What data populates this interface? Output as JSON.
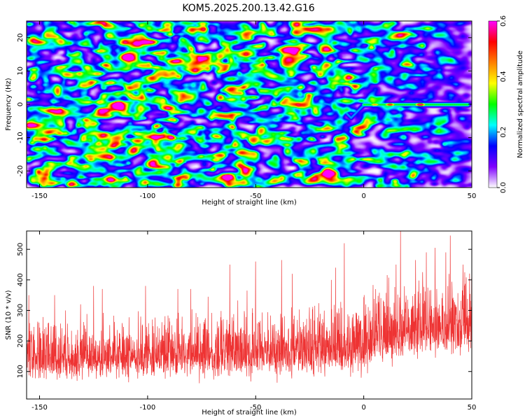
{
  "title": "KOM5.2025.200.13.42.G16",
  "chart_data": [
    {
      "type": "heatmap",
      "title": "KOM5.2025.200.13.42.G16",
      "xlabel": "Height of straight line (km)",
      "ylabel": "Frequency (Hz)",
      "xlim": [
        -156,
        50
      ],
      "ylim": [
        -25,
        25
      ],
      "x_ticks": [
        -150,
        -100,
        -50,
        0,
        50
      ],
      "y_ticks": [
        -20,
        -10,
        0,
        10,
        20
      ],
      "grid": false,
      "colorbar": {
        "label": "Normalized spectral amplitude",
        "range": [
          0,
          0.6
        ],
        "ticks": [
          0.0,
          0.2,
          0.4,
          0.6
        ],
        "colormap": [
          "#ffffff",
          "#7f00ff",
          "#0000ff",
          "#00ffff",
          "#00ff00",
          "#ffff00",
          "#ff8000",
          "#ff0000",
          "#ff00ff"
        ]
      },
      "features": [
        {
          "kind": "noise-field",
          "x_range": [
            -156,
            50
          ],
          "y_range": [
            -25,
            25
          ],
          "amplitude": 0.1
        },
        {
          "kind": "ridge",
          "points": [
            [
              -33,
              -2
            ],
            [
              -28,
              -1
            ],
            [
              -24,
              0
            ],
            [
              -20,
              0.5
            ],
            [
              -16,
              0
            ],
            [
              -12,
              -0.5
            ],
            [
              -9,
              -2
            ],
            [
              -6,
              -4
            ],
            [
              -3,
              -2
            ],
            [
              0,
              0
            ],
            [
              5,
              0
            ],
            [
              10,
              0
            ],
            [
              15,
              0
            ],
            [
              20,
              0
            ],
            [
              25,
              0
            ],
            [
              30,
              0
            ],
            [
              35,
              0
            ],
            [
              40,
              0
            ],
            [
              45,
              0
            ],
            [
              48,
              0
            ]
          ]
        },
        {
          "kind": "peak",
          "x": 26,
          "y": 0,
          "value": 0.6
        },
        {
          "kind": "peak",
          "x": 12,
          "y": 0,
          "value": 0.55
        },
        {
          "kind": "peak",
          "x": 5,
          "y": 0,
          "value": 0.45
        },
        {
          "kind": "spot",
          "x": -75,
          "y": 12,
          "value": 0.3
        },
        {
          "kind": "spot",
          "x": -83,
          "y": -17,
          "value": 0.28
        },
        {
          "kind": "spot",
          "x": -86,
          "y": -10,
          "value": 0.22
        }
      ]
    },
    {
      "type": "line",
      "xlabel": "Height of straight line (km)",
      "ylabel": "SNR (10 * v/v)",
      "xlim": [
        -156,
        50
      ],
      "ylim": [
        10,
        560
      ],
      "x_ticks": [
        -150,
        -100,
        -50,
        0,
        50
      ],
      "y_ticks": [
        100,
        200,
        300,
        400,
        500
      ],
      "grid": false,
      "series": [
        {
          "color": "#ee3333",
          "x": [
            -156,
            -145,
            -135,
            -125,
            -115,
            -105,
            -95,
            -85,
            -75,
            -65,
            -55,
            -45,
            -35,
            -25,
            -15,
            -5,
            0,
            5,
            10,
            20,
            30,
            40,
            50
          ],
          "baseline": [
            125,
            120,
            120,
            130,
            125,
            130,
            130,
            135,
            135,
            135,
            135,
            145,
            140,
            140,
            145,
            145,
            150,
            170,
            180,
            195,
            205,
            210,
            210
          ],
          "envelope": [
            290,
            280,
            280,
            300,
            300,
            305,
            305,
            320,
            320,
            320,
            325,
            330,
            330,
            340,
            345,
            355,
            380,
            400,
            410,
            425,
            430,
            440,
            440
          ],
          "peaks": [
            [
              -155,
              350
            ],
            [
              -143,
              350
            ],
            [
              -138,
              300
            ],
            [
              -131,
              320
            ],
            [
              -125,
              380
            ],
            [
              -121,
              370
            ],
            [
              -101,
              380
            ],
            [
              -86,
              370
            ],
            [
              -80,
              370
            ],
            [
              -72,
              345
            ],
            [
              -62,
              450
            ],
            [
              -54,
              365
            ],
            [
              -50,
              460
            ],
            [
              -38,
              465
            ],
            [
              -33,
              420
            ],
            [
              -15,
              400
            ],
            [
              -13,
              440
            ],
            [
              -9,
              520
            ],
            [
              15,
              450
            ],
            [
              17,
              560
            ],
            [
              24,
              465
            ],
            [
              29,
              490
            ],
            [
              33,
              505
            ],
            [
              38,
              490
            ],
            [
              40,
              545
            ],
            [
              46,
              450
            ]
          ]
        }
      ]
    }
  ]
}
